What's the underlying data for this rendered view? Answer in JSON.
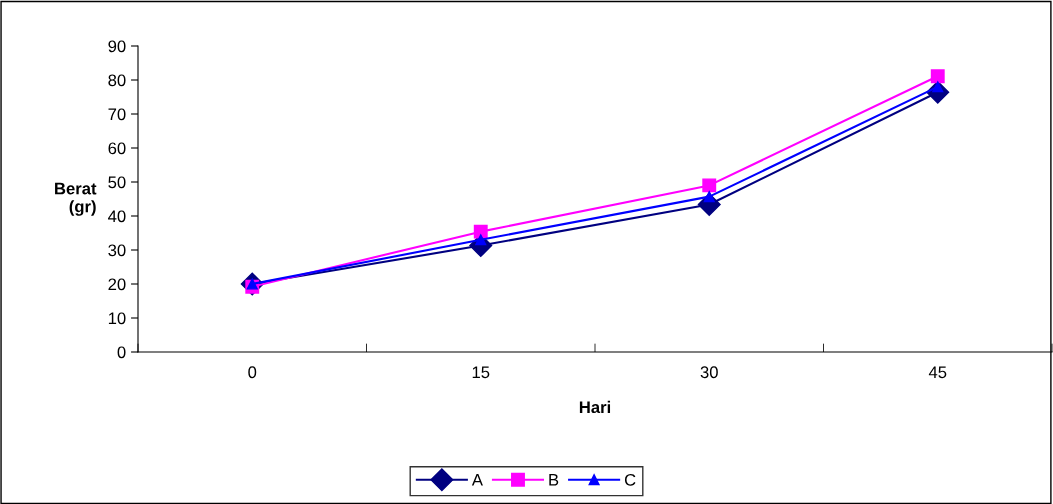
{
  "chart_data": {
    "type": "line",
    "xlabel": "Hari",
    "ylabel": "Berat\n(gr)",
    "categories": [
      "0",
      "15",
      "30",
      "45"
    ],
    "ylim": [
      0,
      90
    ],
    "yticks": [
      0,
      10,
      20,
      30,
      40,
      50,
      60,
      70,
      80,
      90
    ],
    "grid": false,
    "legend": "bottom",
    "series": [
      {
        "name": "A",
        "color": "#000080",
        "marker": "diamond",
        "values": [
          20,
          31.3,
          43.4,
          76.4
        ]
      },
      {
        "name": "B",
        "color": "#ff00ff",
        "marker": "square",
        "values": [
          19.2,
          35.4,
          49,
          81.1
        ]
      },
      {
        "name": "C",
        "color": "#0000ff",
        "marker": "triangle",
        "values": [
          20,
          33,
          45.7,
          78
        ]
      }
    ]
  }
}
